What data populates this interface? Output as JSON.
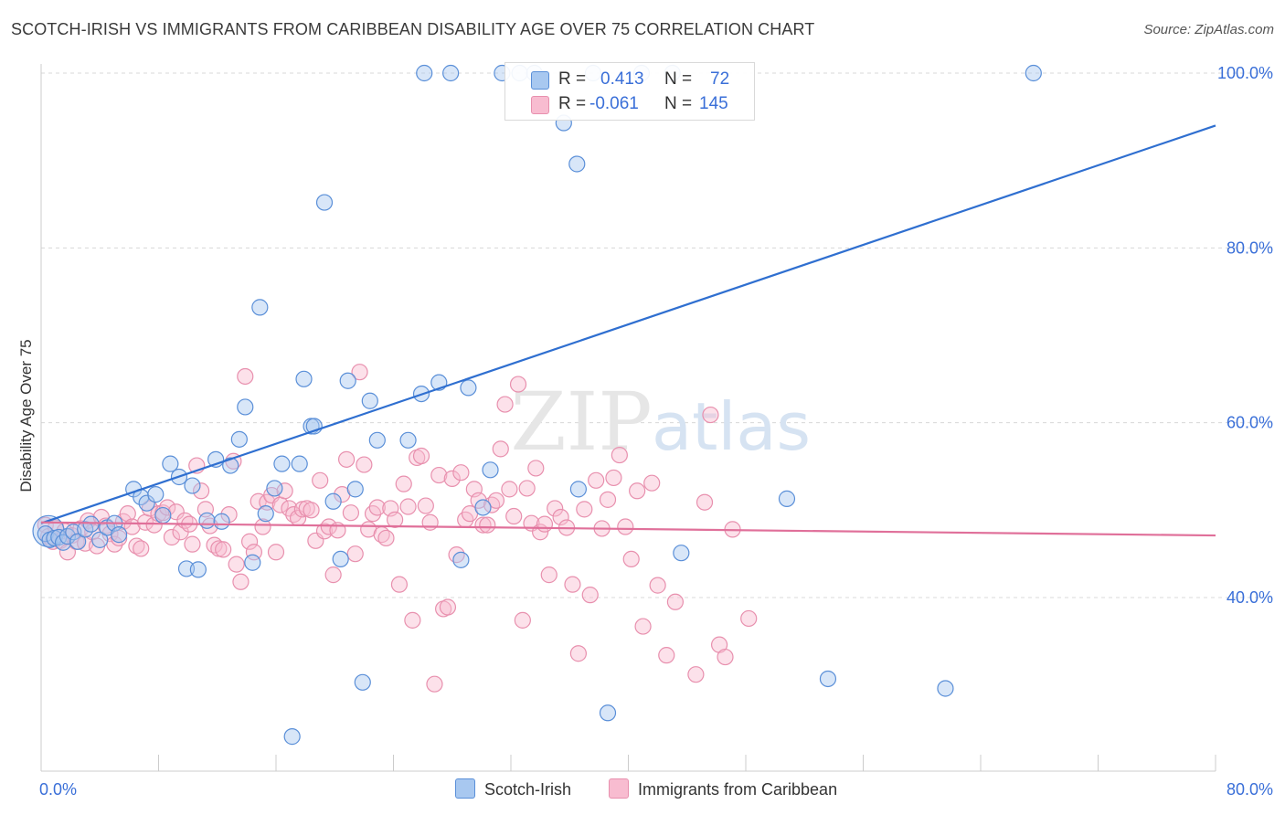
{
  "header": {
    "title": "SCOTCH-IRISH VS IMMIGRANTS FROM CARIBBEAN DISABILITY AGE OVER 75 CORRELATION CHART",
    "source": "Source: ZipAtlas.com"
  },
  "stats": {
    "r_label": "R =",
    "n_label": "N =",
    "series1": {
      "r": "0.413",
      "n": "72"
    },
    "series2": {
      "r": "-0.061",
      "n": "145"
    }
  },
  "colors": {
    "series1_fill": "#a8c8f0",
    "series1_stroke": "#5a8fd8",
    "series1_line": "#2f6fd0",
    "series2_fill": "#f8bcd0",
    "series2_stroke": "#e890ae",
    "series2_line": "#e0709a",
    "grid": "#d8d8d8",
    "tick_text": "#3a6fd8"
  },
  "watermark": {
    "part1": "ZIP",
    "part2": "atlas"
  },
  "chart_data": {
    "type": "scatter",
    "title": "SCOTCH-IRISH VS IMMIGRANTS FROM CARIBBEAN DISABILITY AGE OVER 75 CORRELATION CHART",
    "xlabel": "",
    "ylabel": "Disability Age Over 75",
    "xlim": [
      0,
      80
    ],
    "ylim": [
      20,
      102
    ],
    "x_tick_labels": [
      "0.0%",
      "80.0%"
    ],
    "y_ticks": [
      40,
      60,
      80,
      100
    ],
    "y_tick_labels": [
      "40.0%",
      "60.0%",
      "80.0%",
      "100.0%"
    ],
    "grid": true,
    "legend_position": "bottom-center",
    "series": [
      {
        "name": "Scotch-Irish",
        "trend": {
          "x": [
            0,
            80
          ],
          "y": [
            48.5,
            94.0
          ]
        },
        "points": [
          [
            0.3,
            47.3
          ],
          [
            0.6,
            46.6
          ],
          [
            0.9,
            46.8
          ],
          [
            1.2,
            46.9
          ],
          [
            1.5,
            46.3
          ],
          [
            1.8,
            47.0
          ],
          [
            2.2,
            47.5
          ],
          [
            2.5,
            46.4
          ],
          [
            3.0,
            47.8
          ],
          [
            3.4,
            48.4
          ],
          [
            4.0,
            46.6
          ],
          [
            4.5,
            48.0
          ],
          [
            5.0,
            48.5
          ],
          [
            5.3,
            47.2
          ],
          [
            6.3,
            52.4
          ],
          [
            6.8,
            51.5
          ],
          [
            7.2,
            50.8
          ],
          [
            7.8,
            51.8
          ],
          [
            8.3,
            49.4
          ],
          [
            8.8,
            55.3
          ],
          [
            9.4,
            53.8
          ],
          [
            9.9,
            43.3
          ],
          [
            10.3,
            52.8
          ],
          [
            10.7,
            43.2
          ],
          [
            11.3,
            48.8
          ],
          [
            11.9,
            55.8
          ],
          [
            12.3,
            48.7
          ],
          [
            12.9,
            55.1
          ],
          [
            13.5,
            58.1
          ],
          [
            13.9,
            61.8
          ],
          [
            14.4,
            44.0
          ],
          [
            14.9,
            73.2
          ],
          [
            15.3,
            49.6
          ],
          [
            15.9,
            52.5
          ],
          [
            16.4,
            55.3
          ],
          [
            17.1,
            24.1
          ],
          [
            17.6,
            55.3
          ],
          [
            17.9,
            65.0
          ],
          [
            18.4,
            59.6
          ],
          [
            18.6,
            59.6
          ],
          [
            19.3,
            85.2
          ],
          [
            19.9,
            51.0
          ],
          [
            20.4,
            44.4
          ],
          [
            20.9,
            64.8
          ],
          [
            21.4,
            52.4
          ],
          [
            21.9,
            30.3
          ],
          [
            22.4,
            62.5
          ],
          [
            22.9,
            58.0
          ],
          [
            25.0,
            58.0
          ],
          [
            25.9,
            63.3
          ],
          [
            26.1,
            100.0
          ],
          [
            27.1,
            64.6
          ],
          [
            27.9,
            100.0
          ],
          [
            28.6,
            44.3
          ],
          [
            29.1,
            64.0
          ],
          [
            30.1,
            50.3
          ],
          [
            30.6,
            54.6
          ],
          [
            31.4,
            100.0
          ],
          [
            32.6,
            100.0
          ],
          [
            33.6,
            100.0
          ],
          [
            35.6,
            94.3
          ],
          [
            36.5,
            89.6
          ],
          [
            36.6,
            52.4
          ],
          [
            37.6,
            100.0
          ],
          [
            38.6,
            26.8
          ],
          [
            40.9,
            100.0
          ],
          [
            43.0,
            100.0
          ],
          [
            43.6,
            45.1
          ],
          [
            50.8,
            51.3
          ],
          [
            53.6,
            30.7
          ],
          [
            61.6,
            29.6
          ],
          [
            67.6,
            100.0
          ]
        ]
      },
      {
        "name": "Immigrants from Caribbean",
        "trend": {
          "x": [
            0,
            80
          ],
          "y": [
            48.6,
            47.1
          ]
        },
        "points": [
          [
            0.3,
            48.3
          ],
          [
            0.5,
            47.0
          ],
          [
            0.8,
            46.4
          ],
          [
            1.0,
            48.0
          ],
          [
            1.3,
            46.5
          ],
          [
            1.6,
            47.6
          ],
          [
            1.8,
            45.2
          ],
          [
            2.1,
            47.1
          ],
          [
            2.4,
            46.4
          ],
          [
            2.7,
            47.9
          ],
          [
            3.0,
            46.2
          ],
          [
            3.2,
            48.8
          ],
          [
            3.5,
            47.5
          ],
          [
            3.8,
            45.9
          ],
          [
            4.1,
            49.2
          ],
          [
            4.4,
            48.2
          ],
          [
            4.7,
            47.3
          ],
          [
            5.0,
            46.1
          ],
          [
            5.3,
            46.8
          ],
          [
            5.6,
            48.7
          ],
          [
            5.9,
            49.6
          ],
          [
            6.2,
            48.1
          ],
          [
            6.5,
            45.9
          ],
          [
            6.8,
            45.6
          ],
          [
            7.1,
            48.6
          ],
          [
            7.4,
            50.2
          ],
          [
            7.7,
            48.3
          ],
          [
            8.0,
            49.6
          ],
          [
            8.3,
            49.7
          ],
          [
            8.6,
            50.3
          ],
          [
            8.9,
            46.9
          ],
          [
            9.2,
            49.8
          ],
          [
            9.5,
            47.5
          ],
          [
            9.8,
            48.8
          ],
          [
            10.1,
            48.4
          ],
          [
            10.3,
            46.1
          ],
          [
            10.6,
            55.1
          ],
          [
            10.9,
            52.2
          ],
          [
            11.2,
            50.1
          ],
          [
            11.5,
            48.2
          ],
          [
            11.8,
            46.0
          ],
          [
            12.1,
            45.6
          ],
          [
            12.4,
            45.5
          ],
          [
            12.8,
            49.5
          ],
          [
            13.1,
            55.6
          ],
          [
            13.3,
            43.8
          ],
          [
            13.6,
            41.8
          ],
          [
            13.9,
            65.3
          ],
          [
            14.2,
            46.4
          ],
          [
            14.5,
            45.2
          ],
          [
            14.8,
            51.0
          ],
          [
            15.1,
            48.1
          ],
          [
            15.4,
            50.9
          ],
          [
            15.7,
            51.7
          ],
          [
            16.0,
            45.2
          ],
          [
            16.3,
            50.6
          ],
          [
            16.6,
            52.2
          ],
          [
            16.9,
            50.2
          ],
          [
            17.2,
            49.5
          ],
          [
            17.5,
            49.1
          ],
          [
            17.8,
            50.1
          ],
          [
            18.1,
            50.2
          ],
          [
            18.4,
            50.0
          ],
          [
            18.7,
            46.5
          ],
          [
            19.0,
            53.4
          ],
          [
            19.3,
            47.6
          ],
          [
            19.6,
            48.1
          ],
          [
            19.9,
            42.6
          ],
          [
            20.2,
            47.7
          ],
          [
            20.5,
            51.8
          ],
          [
            20.8,
            55.8
          ],
          [
            21.1,
            49.7
          ],
          [
            21.4,
            45.0
          ],
          [
            21.7,
            65.8
          ],
          [
            22.0,
            55.2
          ],
          [
            22.3,
            47.8
          ],
          [
            22.6,
            49.6
          ],
          [
            22.9,
            50.3
          ],
          [
            23.2,
            47.2
          ],
          [
            23.5,
            46.8
          ],
          [
            23.8,
            50.2
          ],
          [
            24.1,
            48.9
          ],
          [
            24.4,
            41.5
          ],
          [
            24.7,
            53.0
          ],
          [
            25.0,
            50.4
          ],
          [
            25.3,
            37.4
          ],
          [
            25.6,
            56.0
          ],
          [
            25.9,
            56.2
          ],
          [
            26.2,
            50.5
          ],
          [
            26.5,
            48.6
          ],
          [
            26.8,
            30.1
          ],
          [
            27.1,
            54.0
          ],
          [
            27.4,
            38.7
          ],
          [
            27.7,
            38.9
          ],
          [
            28.0,
            53.6
          ],
          [
            28.3,
            44.9
          ],
          [
            28.6,
            54.3
          ],
          [
            28.9,
            48.9
          ],
          [
            29.2,
            49.6
          ],
          [
            29.5,
            52.4
          ],
          [
            29.8,
            51.1
          ],
          [
            30.1,
            48.3
          ],
          [
            30.4,
            48.3
          ],
          [
            30.7,
            50.6
          ],
          [
            31.0,
            51.1
          ],
          [
            31.3,
            57.0
          ],
          [
            31.6,
            62.1
          ],
          [
            31.9,
            52.4
          ],
          [
            32.2,
            49.3
          ],
          [
            32.5,
            64.4
          ],
          [
            32.8,
            37.4
          ],
          [
            33.1,
            52.5
          ],
          [
            33.4,
            48.5
          ],
          [
            33.7,
            54.8
          ],
          [
            34.0,
            47.5
          ],
          [
            34.3,
            48.4
          ],
          [
            34.6,
            42.6
          ],
          [
            35.0,
            50.2
          ],
          [
            35.4,
            49.2
          ],
          [
            35.8,
            48.0
          ],
          [
            36.2,
            41.5
          ],
          [
            36.6,
            33.6
          ],
          [
            37.0,
            50.1
          ],
          [
            37.4,
            40.3
          ],
          [
            37.8,
            53.4
          ],
          [
            38.2,
            47.9
          ],
          [
            38.6,
            51.2
          ],
          [
            39.0,
            53.7
          ],
          [
            39.4,
            56.3
          ],
          [
            39.8,
            48.1
          ],
          [
            40.2,
            44.4
          ],
          [
            40.6,
            52.2
          ],
          [
            41.0,
            36.7
          ],
          [
            41.6,
            53.1
          ],
          [
            42.0,
            41.4
          ],
          [
            42.6,
            33.4
          ],
          [
            43.2,
            39.5
          ],
          [
            44.6,
            31.2
          ],
          [
            45.2,
            50.9
          ],
          [
            45.6,
            60.9
          ],
          [
            46.2,
            34.6
          ],
          [
            46.6,
            33.2
          ],
          [
            47.1,
            47.8
          ],
          [
            48.2,
            37.6
          ]
        ]
      }
    ]
  },
  "legend": {
    "series1": "Scotch-Irish",
    "series2": "Immigrants from Caribbean"
  }
}
